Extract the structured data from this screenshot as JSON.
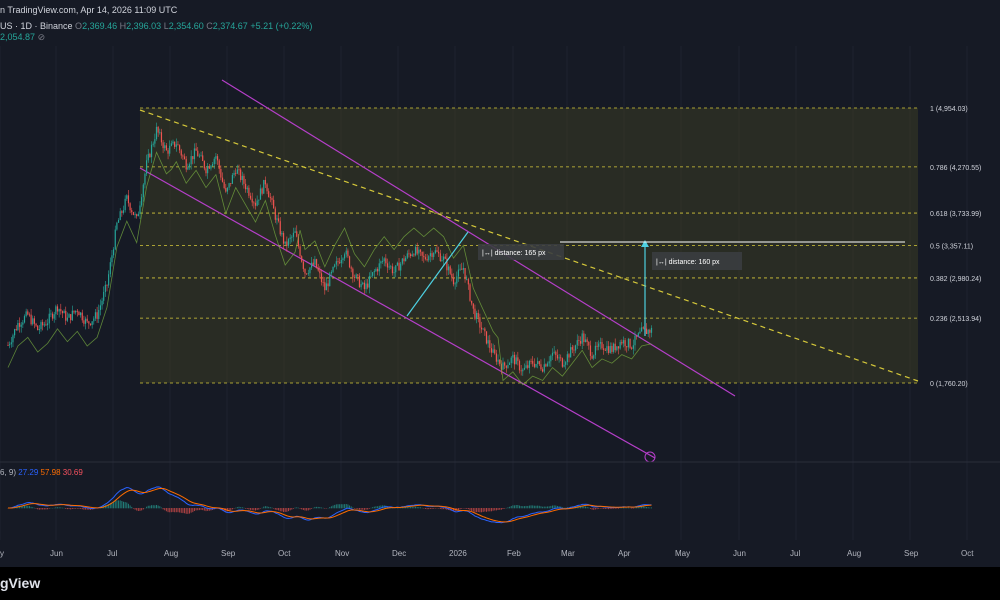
{
  "header": {
    "source_text": "n TradingView.com, Apr 14, 2026 11:09 UTC",
    "symbol_text": "US · 1D · Binance",
    "ohlc": {
      "o_label": "O",
      "o": "2,369.46",
      "h_label": "H",
      "h": "2,396.03",
      "l_label": "L",
      "l": "2,354.60",
      "c_label": "C",
      "c": "2,374.67",
      "change": "+5.21 (+0.22%)"
    },
    "indicator_text": "2,054.87",
    "indicator_icon": "eye-off-icon"
  },
  "macd_legend": {
    "prefix": "6, 9)",
    "macd": "27.29",
    "signal": "57.98",
    "hist": "30.69"
  },
  "footer": {
    "brand": "gView"
  },
  "colors": {
    "bg": "#161a25",
    "up": "#26a69a",
    "down": "#ef5350",
    "fib_line": "#d6c93a",
    "fib_fill": "#3a3d24",
    "channel": "#b53fc9",
    "measure": "#4dd0e1",
    "grid": "#1f2330",
    "macd": "#2962ff",
    "signal": "#ff6d00"
  },
  "chart_data": {
    "type": "candlestick",
    "x_axis": {
      "labels": [
        "y",
        "Jun",
        "Jul",
        "Aug",
        "Sep",
        "Oct",
        "Nov",
        "Dec",
        "2026",
        "Feb",
        "Mar",
        "Apr",
        "May",
        "Jun",
        "Jul",
        "Aug",
        "Sep",
        "Oct"
      ]
    },
    "fib_levels": [
      {
        "ratio": "1",
        "price": 4954.03,
        "label": "1 (4,954.03)"
      },
      {
        "ratio": "0.786",
        "price": 4270.55,
        "label": "0.786 (4,270.55)"
      },
      {
        "ratio": "0.618",
        "price": 3733.99,
        "label": "0.618 (3,733.99)"
      },
      {
        "ratio": "0.5",
        "price": 3357.11,
        "label": "0.5 (3,357.11)"
      },
      {
        "ratio": "0.382",
        "price": 2980.24,
        "label": "0.382 (2,980.24)"
      },
      {
        "ratio": "0.236",
        "price": 2513.94,
        "label": "0.236 (2,513.94)"
      },
      {
        "ratio": "0",
        "price": 1760.2,
        "label": "0 (1,760.20)"
      }
    ],
    "annotations": [
      {
        "text": "distance: 165 px"
      },
      {
        "text": "distance: 160 px"
      }
    ],
    "price_path": [
      [
        0,
        2200
      ],
      [
        6,
        2450
      ],
      [
        12,
        2550
      ],
      [
        18,
        2380
      ],
      [
        24,
        2480
      ],
      [
        30,
        2650
      ],
      [
        36,
        2500
      ],
      [
        42,
        2620
      ],
      [
        48,
        2450
      ],
      [
        54,
        2550
      ],
      [
        60,
        2900
      ],
      [
        66,
        3600
      ],
      [
        72,
        3900
      ],
      [
        78,
        3650
      ],
      [
        84,
        4300
      ],
      [
        90,
        4700
      ],
      [
        96,
        4450
      ],
      [
        102,
        4550
      ],
      [
        108,
        4300
      ],
      [
        114,
        4450
      ],
      [
        120,
        4250
      ],
      [
        126,
        4400
      ],
      [
        132,
        3950
      ],
      [
        138,
        4250
      ],
      [
        144,
        4050
      ],
      [
        150,
        3850
      ],
      [
        156,
        4100
      ],
      [
        162,
        3700
      ],
      [
        168,
        3350
      ],
      [
        174,
        3500
      ],
      [
        180,
        3050
      ],
      [
        186,
        3150
      ],
      [
        192,
        2850
      ],
      [
        198,
        3100
      ],
      [
        204,
        3300
      ],
      [
        210,
        3000
      ],
      [
        216,
        2850
      ],
      [
        222,
        3050
      ],
      [
        228,
        3200
      ],
      [
        234,
        3050
      ],
      [
        240,
        3200
      ],
      [
        246,
        3300
      ],
      [
        252,
        3200
      ],
      [
        258,
        3300
      ],
      [
        264,
        3200
      ],
      [
        270,
        2950
      ],
      [
        276,
        3100
      ],
      [
        282,
        2600
      ],
      [
        288,
        2350
      ],
      [
        294,
        2100
      ],
      [
        300,
        1950
      ],
      [
        306,
        2050
      ],
      [
        312,
        1900
      ],
      [
        318,
        2000
      ],
      [
        324,
        1950
      ],
      [
        330,
        2100
      ],
      [
        336,
        2000
      ],
      [
        342,
        2150
      ],
      [
        348,
        2300
      ],
      [
        354,
        2100
      ],
      [
        360,
        2200
      ],
      [
        366,
        2150
      ],
      [
        372,
        2250
      ],
      [
        378,
        2200
      ],
      [
        384,
        2350
      ],
      [
        390,
        2375
      ]
    ]
  }
}
